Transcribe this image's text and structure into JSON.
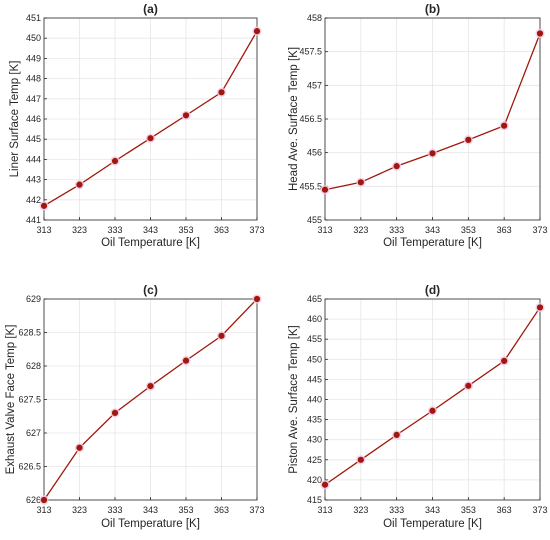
{
  "chart_data": [
    {
      "type": "line",
      "title": "(a)",
      "xlabel": "Oil Temperature [K]",
      "ylabel": "Liner Surface Temp [K]",
      "x": [
        313,
        323,
        333,
        343,
        353,
        363,
        373
      ],
      "series": [
        {
          "values": [
            441.7,
            442.75,
            443.92,
            445.05,
            446.18,
            447.32,
            450.35
          ]
        }
      ],
      "xlim": [
        313,
        373
      ],
      "ylim": [
        441,
        451
      ],
      "xticks": [
        313,
        323,
        333,
        343,
        353,
        363,
        373
      ],
      "yticks": [
        441,
        442,
        443,
        444,
        445,
        446,
        447,
        448,
        449,
        450,
        451
      ],
      "grid": true,
      "color": "#a0180c"
    },
    {
      "type": "line",
      "title": "(b)",
      "xlabel": "Oil Temperature [K]",
      "ylabel": "Head Ave. Surface Temp [K]",
      "x": [
        313,
        323,
        333,
        343,
        353,
        363,
        373
      ],
      "series": [
        {
          "values": [
            455.45,
            455.56,
            455.8,
            455.99,
            456.19,
            456.4,
            457.77
          ]
        }
      ],
      "xlim": [
        313,
        373
      ],
      "ylim": [
        455,
        458
      ],
      "xticks": [
        313,
        323,
        333,
        343,
        353,
        363,
        373
      ],
      "yticks": [
        455,
        455.5,
        456,
        456.5,
        457,
        457.5,
        458
      ],
      "grid": true,
      "color": "#a0180c"
    },
    {
      "type": "line",
      "title": "(c)",
      "xlabel": "Oil Temperature [K]",
      "ylabel": "Exhaust Valve Face Temp [K]",
      "x": [
        313,
        323,
        333,
        343,
        353,
        363,
        373
      ],
      "series": [
        {
          "values": [
            626.0,
            626.78,
            627.3,
            627.7,
            628.08,
            628.45,
            629.0
          ]
        }
      ],
      "xlim": [
        313,
        373
      ],
      "ylim": [
        626,
        629
      ],
      "xticks": [
        313,
        323,
        333,
        343,
        353,
        363,
        373
      ],
      "yticks": [
        626,
        626.5,
        627,
        627.5,
        628,
        628.5,
        629
      ],
      "grid": true,
      "color": "#a0180c"
    },
    {
      "type": "line",
      "title": "(d)",
      "xlabel": "Oil Temperature [K]",
      "ylabel": "Piston Ave. Surface Temp [K]",
      "x": [
        313,
        323,
        333,
        343,
        353,
        363,
        373
      ],
      "series": [
        {
          "values": [
            418.8,
            425.0,
            431.2,
            437.2,
            443.4,
            449.6,
            462.9
          ]
        }
      ],
      "xlim": [
        313,
        373
      ],
      "ylim": [
        415,
        465
      ],
      "xticks": [
        313,
        323,
        333,
        343,
        353,
        363,
        373
      ],
      "yticks": [
        415,
        420,
        425,
        430,
        435,
        440,
        445,
        450,
        455,
        460,
        465
      ],
      "grid": true,
      "color": "#a0180c"
    }
  ]
}
